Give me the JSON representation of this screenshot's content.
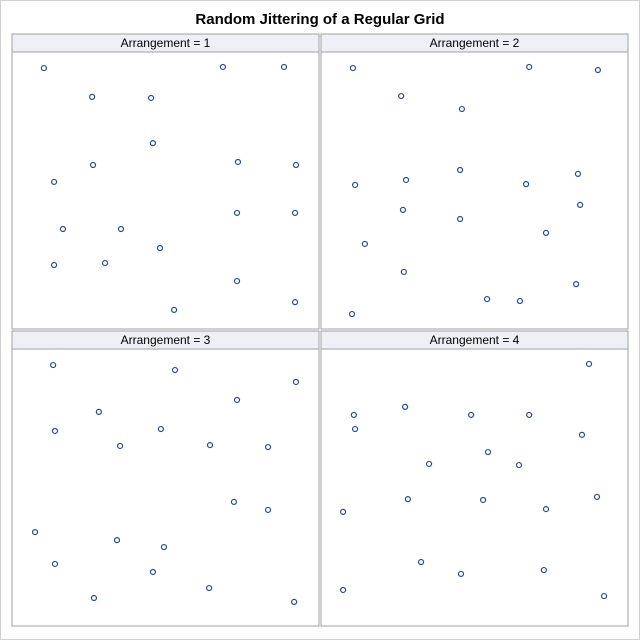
{
  "title": "Random Jittering of a Regular Grid",
  "chart_data": [
    {
      "type": "scatter",
      "title": "Arrangement = 1",
      "color": "#1f4e99",
      "xlim": [
        0,
        100
      ],
      "ylim": [
        0,
        100
      ],
      "x": [
        10.4,
        68.7,
        88.6,
        26.1,
        45.3,
        45.9,
        26.4,
        73.6,
        92.5,
        13.7,
        73.3,
        92.2,
        16.6,
        35.5,
        48.2,
        13.7,
        30.3,
        73.3,
        92.2,
        52.8
      ],
      "y": [
        94.2,
        94.6,
        94.6,
        83.8,
        83.4,
        67.1,
        59.2,
        60.3,
        59.2,
        53.1,
        41.9,
        41.9,
        36.1,
        36.1,
        29.2,
        23.1,
        23.8,
        17.3,
        9.7,
        6.9
      ]
    },
    {
      "type": "scatter",
      "title": "Arrangement = 2",
      "color": "#1f4e99",
      "xlim": [
        0,
        100
      ],
      "ylim": [
        0,
        100
      ],
      "x": [
        10.4,
        67.8,
        90.2,
        26.1,
        45.9,
        45.3,
        27.7,
        66.8,
        83.7,
        11.1,
        26.7,
        45.3,
        84.4,
        73.3,
        14.3,
        27.0,
        83.1,
        54.1,
        64.8,
        10.1
      ],
      "y": [
        94.2,
        94.6,
        93.5,
        84.1,
        79.4,
        57.4,
        53.8,
        52.3,
        56.0,
        52.0,
        43.0,
        39.7,
        44.8,
        34.7,
        30.7,
        20.6,
        16.2,
        10.8,
        10.1,
        5.4
      ]
    },
    {
      "type": "scatter",
      "title": "Arrangement = 3",
      "color": "#1f4e99",
      "xlim": [
        0,
        100
      ],
      "ylim": [
        0,
        100
      ],
      "x": [
        13.4,
        53.1,
        92.5,
        28.3,
        73.3,
        14.0,
        48.5,
        35.2,
        64.5,
        83.4,
        72.3,
        83.4,
        7.5,
        34.2,
        49.5,
        14.0,
        45.9,
        64.2,
        26.7,
        91.9
      ],
      "y": [
        94.2,
        92.4,
        88.1,
        77.3,
        81.6,
        70.4,
        71.1,
        65.0,
        65.3,
        64.6,
        44.8,
        41.9,
        33.9,
        31.0,
        28.5,
        22.4,
        19.5,
        13.7,
        10.1,
        8.7
      ]
    },
    {
      "type": "scatter",
      "title": "Arrangement = 4",
      "color": "#1f4e99",
      "xlim": [
        0,
        100
      ],
      "ylim": [
        0,
        100
      ],
      "x": [
        87.3,
        10.7,
        27.4,
        48.9,
        67.8,
        11.1,
        85.0,
        54.4,
        35.2,
        64.5,
        28.3,
        52.8,
        89.9,
        73.3,
        7.2,
        32.6,
        45.6,
        72.6,
        7.2,
        92.2
      ],
      "y": [
        94.6,
        76.2,
        79.1,
        76.2,
        76.2,
        71.1,
        69.0,
        62.8,
        58.5,
        58.1,
        45.8,
        45.5,
        46.6,
        42.2,
        41.2,
        23.1,
        18.8,
        20.2,
        13.0,
        10.8
      ]
    }
  ]
}
